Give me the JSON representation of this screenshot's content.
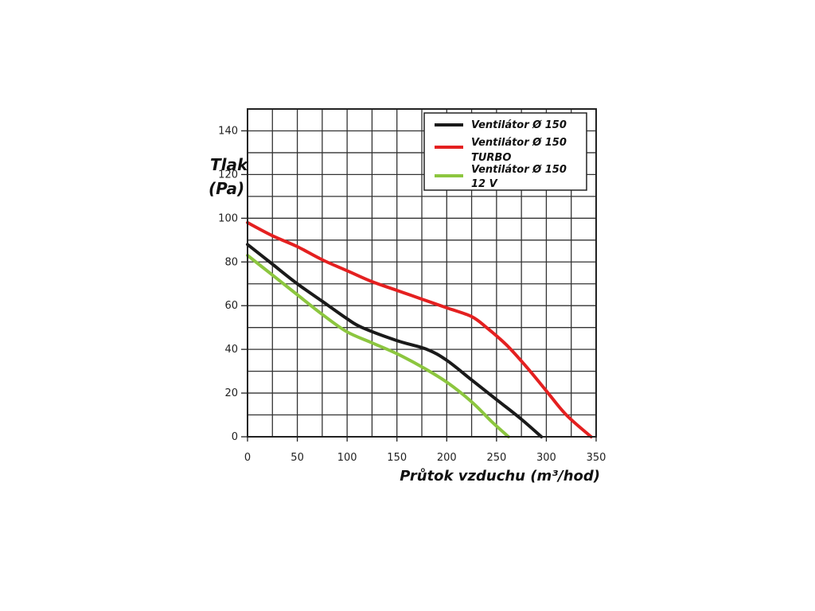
{
  "chart_data": {
    "type": "line",
    "xlabel": "Průtok vzduchu (m³/hod)",
    "ylabel_line1": "Tlak",
    "ylabel_line2": "(Pa)",
    "xlim": [
      0,
      350
    ],
    "ylim": [
      0,
      150
    ],
    "x_ticks": [
      0,
      50,
      100,
      150,
      200,
      250,
      300,
      350
    ],
    "y_ticks": [
      0,
      20,
      40,
      60,
      80,
      100,
      120,
      140
    ],
    "grid": true,
    "legend_position": "top-right",
    "series": [
      {
        "name_lines": [
          "Ventilátor Ø 150"
        ],
        "color": "#1a1a1a",
        "points": [
          [
            0,
            88
          ],
          [
            25,
            79
          ],
          [
            50,
            70
          ],
          [
            75,
            62
          ],
          [
            100,
            54
          ],
          [
            115,
            50
          ],
          [
            150,
            44
          ],
          [
            180,
            40
          ],
          [
            200,
            35
          ],
          [
            225,
            26
          ],
          [
            250,
            17
          ],
          [
            275,
            8
          ],
          [
            295,
            0
          ]
        ]
      },
      {
        "name_lines": [
          "Ventilátor Ø 150",
          "TURBO"
        ],
        "color": "#e42020",
        "points": [
          [
            0,
            98
          ],
          [
            25,
            92
          ],
          [
            50,
            87
          ],
          [
            75,
            81
          ],
          [
            100,
            76
          ],
          [
            125,
            71
          ],
          [
            150,
            67
          ],
          [
            175,
            63
          ],
          [
            200,
            59
          ],
          [
            225,
            55
          ],
          [
            240,
            50
          ],
          [
            260,
            42
          ],
          [
            280,
            32
          ],
          [
            300,
            21
          ],
          [
            320,
            10
          ],
          [
            345,
            0
          ]
        ]
      },
      {
        "name_lines": [
          "Ventilátor Ø 150",
          "12 V"
        ],
        "color": "#8cc63f",
        "points": [
          [
            0,
            83
          ],
          [
            25,
            74
          ],
          [
            50,
            65
          ],
          [
            75,
            56
          ],
          [
            100,
            48
          ],
          [
            125,
            43
          ],
          [
            150,
            38
          ],
          [
            175,
            32
          ],
          [
            200,
            25
          ],
          [
            225,
            16
          ],
          [
            245,
            7
          ],
          [
            262,
            0
          ]
        ]
      }
    ]
  }
}
